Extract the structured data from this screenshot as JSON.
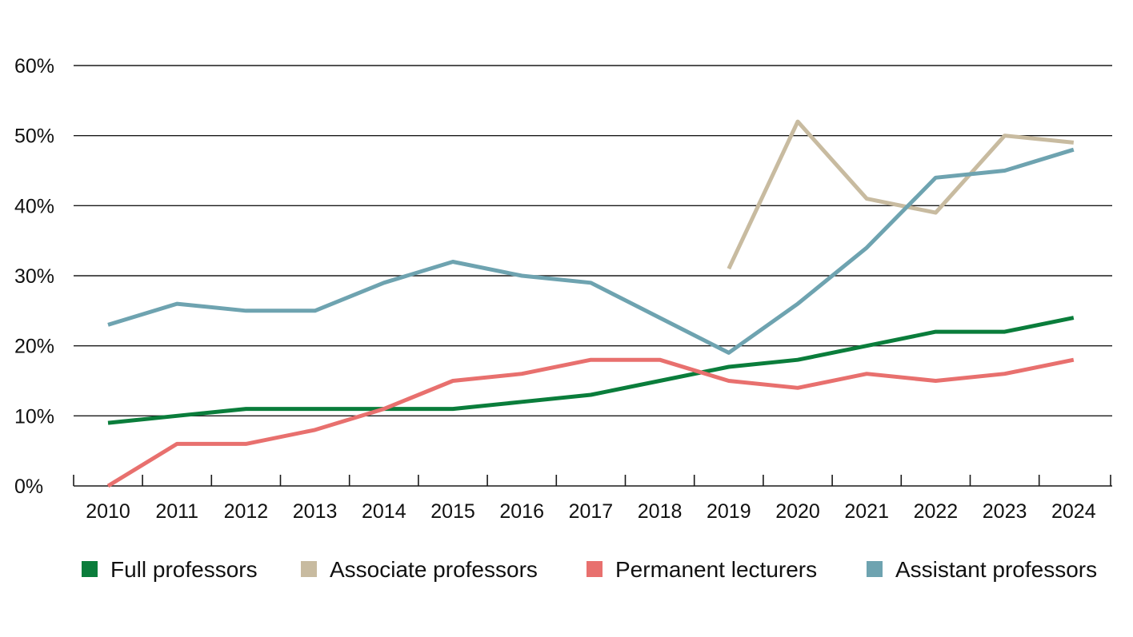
{
  "chart_data": {
    "type": "line",
    "x": [
      "2010",
      "2011",
      "2012",
      "2013",
      "2014",
      "2015",
      "2016",
      "2017",
      "2018",
      "2019",
      "2020",
      "2021",
      "2022",
      "2023",
      "2024"
    ],
    "y_ticks": [
      "0%",
      "10%",
      "20%",
      "30%",
      "40%",
      "50%",
      "60%"
    ],
    "ylim": [
      0,
      60
    ],
    "grid": true,
    "legend_position": "bottom",
    "series": [
      {
        "name": "Full professors",
        "color": "#0a7d3b",
        "values": [
          9,
          10,
          11,
          11,
          11,
          11,
          12,
          13,
          15,
          17,
          18,
          20,
          22,
          22,
          24
        ]
      },
      {
        "name": "Associate professors",
        "color": "#c8bba0",
        "values": [
          null,
          null,
          null,
          null,
          null,
          null,
          null,
          null,
          null,
          31,
          52,
          41,
          39,
          50,
          49
        ]
      },
      {
        "name": "Permanent lecturers",
        "color": "#e8706e",
        "values": [
          0,
          6,
          6,
          8,
          11,
          15,
          16,
          18,
          18,
          15,
          14,
          16,
          15,
          16,
          18
        ]
      },
      {
        "name": "Assistant professors",
        "color": "#6ea3b0",
        "values": [
          23,
          26,
          25,
          25,
          29,
          32,
          30,
          29,
          24,
          19,
          26,
          34,
          44,
          45,
          48
        ]
      }
    ]
  }
}
